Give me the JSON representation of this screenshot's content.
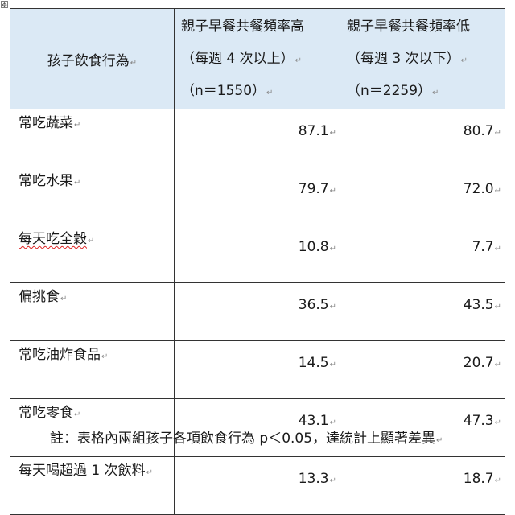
{
  "header": {
    "col1": "孩子飲食行為",
    "col2": [
      "親子早餐共餐頻率高",
      "（每週 4 次以上）",
      "（n＝1550）"
    ],
    "col3": [
      "親子早餐共餐頻率低",
      "（每週 3 次以下）",
      "（n＝2259）"
    ]
  },
  "rows": [
    {
      "label": "常吃蔬菜",
      "high": "87.1",
      "low": "80.7"
    },
    {
      "label": "常吃水果",
      "high": "79.7",
      "low": "72.0"
    },
    {
      "label": "每天吃全穀",
      "high": "10.8",
      "low": "7.7"
    },
    {
      "label": "偏挑食",
      "high": "36.5",
      "low": "43.5"
    },
    {
      "label": "常吃油炸食品",
      "high": "14.5",
      "low": "20.7"
    },
    {
      "label": "常吃零食",
      "high": "43.1",
      "low": "47.3"
    },
    {
      "label": "每天喝超過 1 次飲料",
      "high": "13.3",
      "low": "18.7"
    }
  ],
  "note": "註：表格內兩組孩子各項飲食行為 p＜0.05，達統計上顯著差異"
}
